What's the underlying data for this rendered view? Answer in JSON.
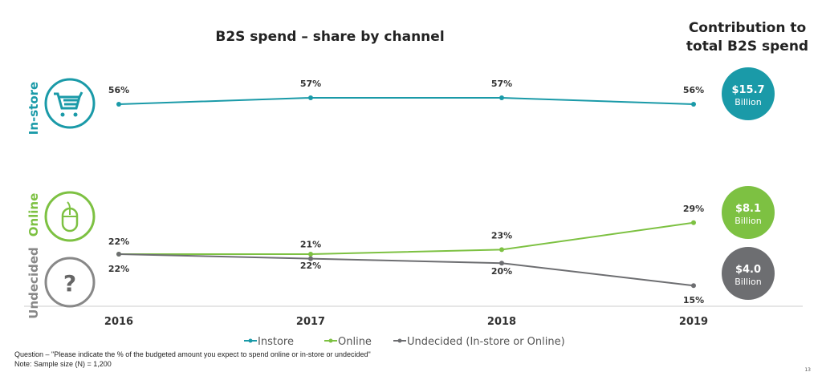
{
  "chart_data": {
    "type": "line",
    "title": "B2S spend – share by channel",
    "categories": [
      "2016",
      "2017",
      "2018",
      "2019"
    ],
    "series": [
      {
        "name": "Instore",
        "row_label": "In-store",
        "color": "#1a9aa8",
        "values": [
          56,
          57,
          57,
          56
        ],
        "labels": [
          "56%",
          "57%",
          "57%",
          "56%"
        ],
        "contribution": "$15.7",
        "unit": "Billion"
      },
      {
        "name": "Online",
        "row_label": "Online",
        "color": "#7dc142",
        "values": [
          22,
          22,
          23,
          29
        ],
        "labels": [
          "22%",
          "22%",
          "23%",
          "29%"
        ],
        "contribution": "$8.1",
        "unit": "Billion"
      },
      {
        "name": "Undecided (In-store or Online)",
        "row_label": "Undecided",
        "color": "#6d6e71",
        "values": [
          22,
          21,
          20,
          15
        ],
        "labels": [
          "22%",
          "21%",
          "20%",
          "15%"
        ],
        "contribution": "$4.0",
        "unit": "Billion"
      }
    ],
    "contribution_title": [
      "Contribution to",
      "total B2S spend"
    ],
    "legend_position": "bottom"
  },
  "footer": {
    "question": "Question – \"Please indicate the % of the budgeted amount you expect to spend online or in-store or undecided\"",
    "note": "Note: Sample size (N) = 1,200",
    "page": "13"
  },
  "icons": {
    "instore": "shopping-cart-icon",
    "online": "mouse-icon",
    "undecided": "question-mark-icon"
  }
}
